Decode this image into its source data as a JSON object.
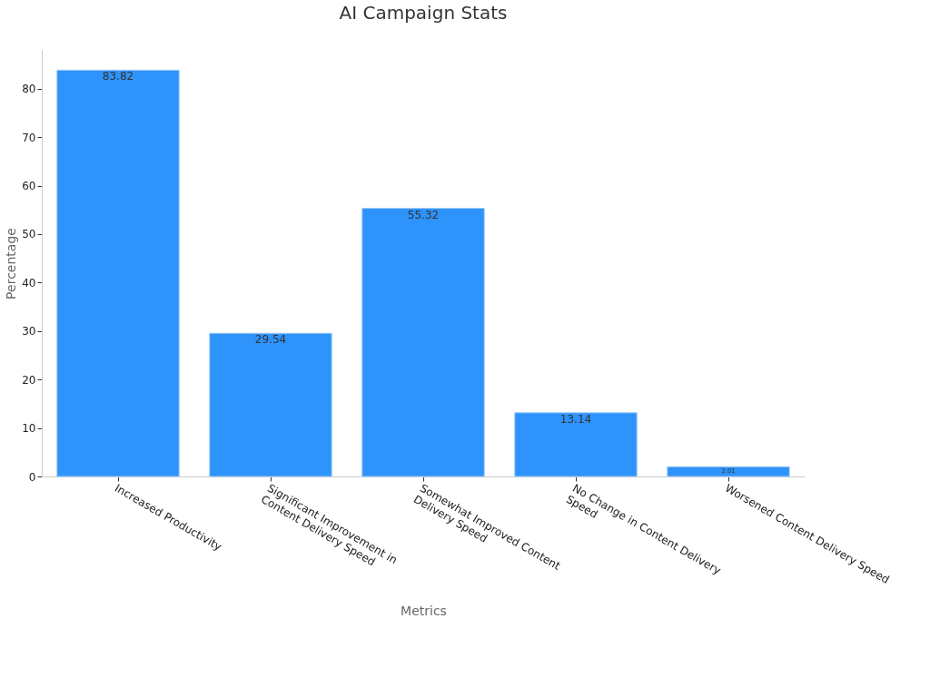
{
  "chart_data": {
    "type": "bar",
    "title": "AI Campaign Stats",
    "xlabel": "Metrics",
    "ylabel": "Percentage",
    "categories": [
      "Increased Productivity",
      "Significant Improvement in Content Delivery Speed",
      "Somewhat Improved Content Delivery Speed",
      "No Change in Content Delivery Speed",
      "Worsened Content Delivery Speed"
    ],
    "values": [
      83.82,
      29.54,
      55.32,
      13.14,
      2.01
    ],
    "color": "#2e93fa",
    "ylim": [
      0,
      88
    ],
    "yticks": [
      0,
      10,
      20,
      30,
      40,
      50,
      60,
      70,
      80
    ],
    "grid": false,
    "data_labels": true
  }
}
